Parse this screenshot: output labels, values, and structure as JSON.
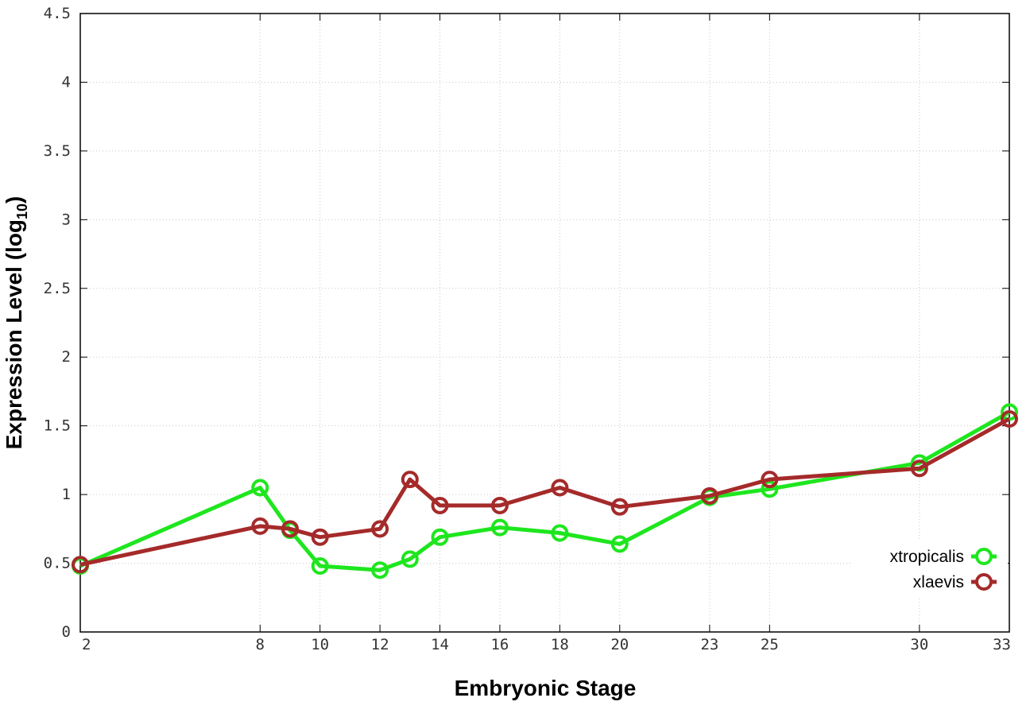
{
  "chart_data": {
    "type": "line",
    "xlabel": "Embryonic Stage",
    "ylabel_main": "Expression Level (log",
    "ylabel_sub": "10",
    "ylabel_close": ")",
    "xlim": [
      2,
      33
    ],
    "ylim": [
      0,
      4.5
    ],
    "x_ticks": [
      2,
      8,
      10,
      12,
      14,
      16,
      18,
      20,
      23,
      25,
      30,
      33
    ],
    "y_ticks": [
      0,
      0.5,
      1,
      1.5,
      2,
      2.5,
      3,
      3.5,
      4,
      4.5
    ],
    "y_tick_labels": [
      "0",
      "0.5",
      "1",
      "1.5",
      "2",
      "2.5",
      "3",
      "3.5",
      "4",
      "4.5"
    ],
    "grid": true,
    "legend_position": "bottom-right",
    "series": [
      {
        "name": "xtropicalis",
        "color": "#1ee61e",
        "x": [
          2,
          8,
          9,
          10,
          12,
          13,
          14,
          16,
          18,
          20,
          23,
          25,
          30,
          33
        ],
        "y": [
          0.48,
          1.05,
          0.74,
          0.48,
          0.45,
          0.53,
          0.69,
          0.76,
          0.72,
          0.64,
          0.98,
          1.04,
          1.23,
          1.6
        ]
      },
      {
        "name": "xlaevis",
        "color": "#a52a2a",
        "x": [
          2,
          8,
          9,
          10,
          12,
          13,
          14,
          16,
          18,
          20,
          23,
          25,
          30,
          33
        ],
        "y": [
          0.49,
          0.77,
          0.75,
          0.69,
          0.75,
          1.11,
          0.92,
          0.92,
          1.05,
          0.91,
          0.99,
          1.11,
          1.19,
          1.55
        ]
      }
    ]
  }
}
